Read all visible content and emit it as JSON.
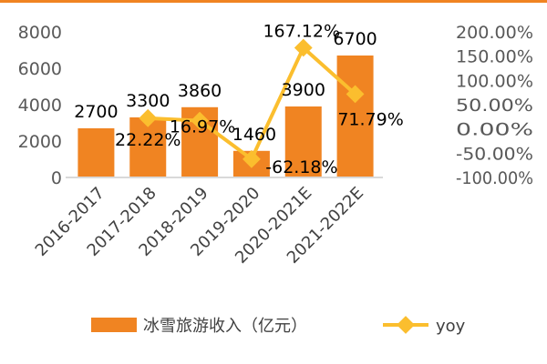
{
  "chart_data": {
    "type": "bar+line",
    "categories": [
      "2016-2017",
      "2017-2018",
      "2018-2019",
      "2019-2020",
      "2020-2021E",
      "2021-2022E"
    ],
    "series": [
      {
        "name": "冰雪旅游收入（亿元）",
        "type": "bar",
        "axis": "left",
        "values": [
          2700,
          3300,
          3860,
          1460,
          3900,
          6700
        ],
        "labels": [
          "2700",
          "3300",
          "3860",
          "1460",
          "3900",
          "6700"
        ]
      },
      {
        "name": "yoy",
        "type": "line",
        "axis": "right",
        "values": [
          null,
          22.22,
          16.97,
          -62.18,
          167.12,
          71.79
        ],
        "labels": [
          "",
          "22.22%",
          "16.97%",
          "-62.18%",
          "167.12%",
          "71.79%"
        ]
      }
    ],
    "y_left": {
      "range": [
        0,
        8000
      ],
      "ticks": [
        "0",
        "2000",
        "4000",
        "6000",
        "8000"
      ]
    },
    "y_right": {
      "range": [
        -100,
        200
      ],
      "ticks": [
        "-100.00%",
        "-50.00%",
        "0.00%",
        "50.00%",
        "100.00%",
        "150.00%",
        "200.00%"
      ]
    },
    "grid": false,
    "legend_placement": "bottom",
    "colors": {
      "bar": "#F08422",
      "line": "#FBBE2E",
      "top_rule": "#F08422"
    }
  }
}
